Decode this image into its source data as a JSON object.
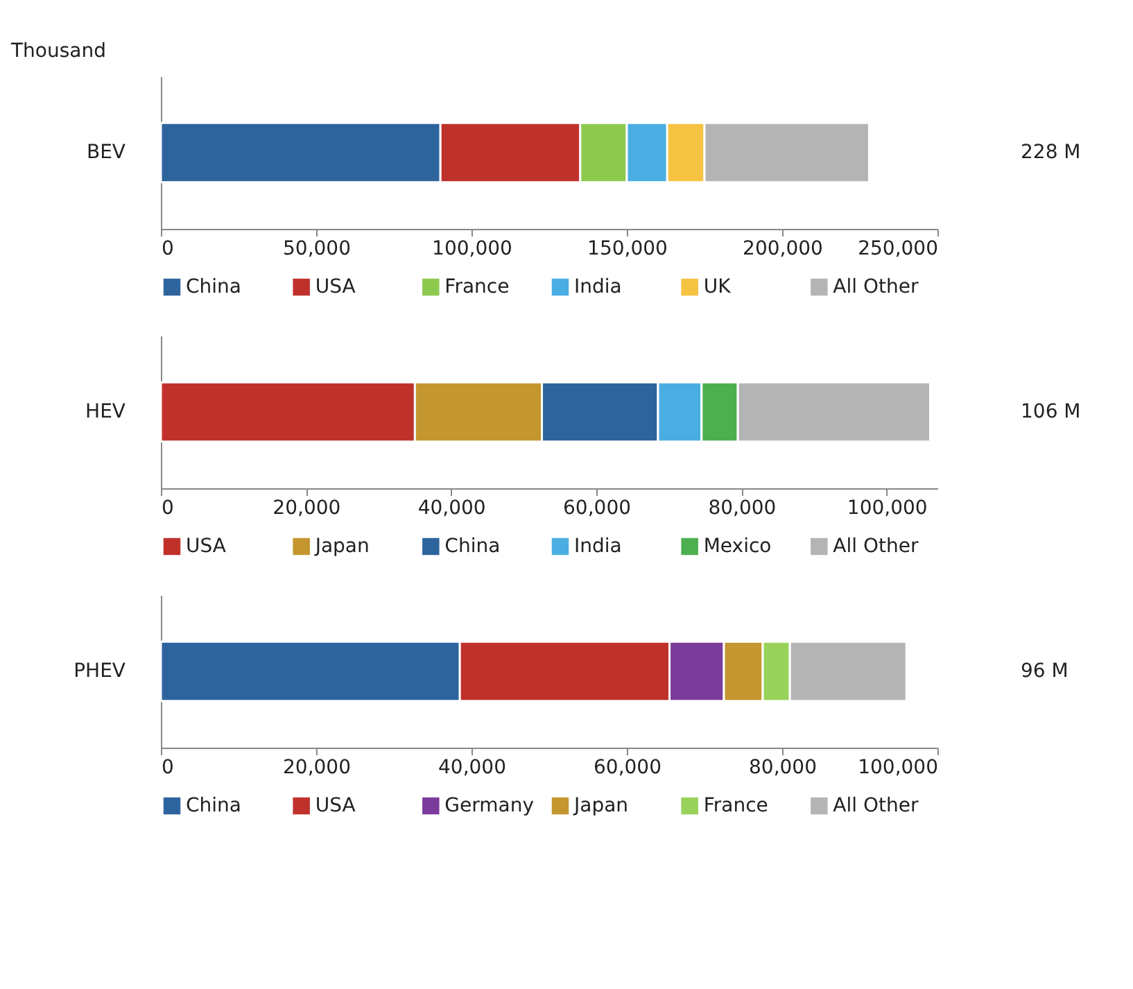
{
  "chart_data": [
    {
      "type": "bar",
      "orientation": "horizontal",
      "stacked": true,
      "ylabel": "Thousand",
      "categories": [
        "BEV"
      ],
      "xlim": [
        0,
        250000
      ],
      "xticks": [
        {
          "value": 0,
          "label": "0"
        },
        {
          "value": 50000,
          "label": "50,000"
        },
        {
          "value": 100000,
          "label": "100,000"
        },
        {
          "value": 150000,
          "label": "150,000"
        },
        {
          "value": 200000,
          "label": "200,000"
        },
        {
          "value": 250000,
          "label": "250,000"
        }
      ],
      "legend": "bottom",
      "grid": false,
      "annotations": [
        "228 M"
      ],
      "series": [
        {
          "name": "China",
          "color": "#2e649e",
          "values": [
            90000
          ]
        },
        {
          "name": "USA",
          "color": "#c0312b",
          "values": [
            45000
          ]
        },
        {
          "name": "France",
          "color": "#8dc94e",
          "values": [
            15000
          ]
        },
        {
          "name": "India",
          "color": "#4aaee3",
          "values": [
            13000
          ]
        },
        {
          "name": "UK",
          "color": "#f5c242",
          "values": [
            12000
          ]
        },
        {
          "name": "All Other",
          "color": "#b4b4b4",
          "values": [
            53000
          ]
        }
      ]
    },
    {
      "type": "bar",
      "orientation": "horizontal",
      "stacked": true,
      "categories": [
        "HEV"
      ],
      "xlim": [
        0,
        107000
      ],
      "xticks": [
        {
          "value": 0,
          "label": "0"
        },
        {
          "value": 20000,
          "label": "20,000"
        },
        {
          "value": 40000,
          "label": "40,000"
        },
        {
          "value": 60000,
          "label": "60,000"
        },
        {
          "value": 80000,
          "label": "80,000"
        },
        {
          "value": 100000,
          "label": "100,000"
        }
      ],
      "legend": "bottom",
      "grid": false,
      "annotations": [
        "106 M"
      ],
      "series": [
        {
          "name": "USA",
          "color": "#c0312b",
          "values": [
            35000
          ]
        },
        {
          "name": "Japan",
          "color": "#c4962f",
          "values": [
            17500
          ]
        },
        {
          "name": "China",
          "color": "#2e649e",
          "values": [
            16000
          ]
        },
        {
          "name": "India",
          "color": "#4aaee3",
          "values": [
            6000
          ]
        },
        {
          "name": "Mexico",
          "color": "#4caf50",
          "values": [
            5000
          ]
        },
        {
          "name": "All Other",
          "color": "#b4b4b4",
          "values": [
            26500
          ]
        }
      ]
    },
    {
      "type": "bar",
      "orientation": "horizontal",
      "stacked": true,
      "categories": [
        "PHEV"
      ],
      "xlim": [
        0,
        100000
      ],
      "xticks": [
        {
          "value": 0,
          "label": "0"
        },
        {
          "value": 20000,
          "label": "20,000"
        },
        {
          "value": 40000,
          "label": "40,000"
        },
        {
          "value": 60000,
          "label": "60,000"
        },
        {
          "value": 80000,
          "label": "80,000"
        },
        {
          "value": 100000,
          "label": "100,000"
        }
      ],
      "legend": "bottom",
      "grid": false,
      "annotations": [
        "96 M"
      ],
      "series": [
        {
          "name": "China",
          "color": "#2e649e",
          "values": [
            38500
          ]
        },
        {
          "name": "USA",
          "color": "#c0312b",
          "values": [
            27000
          ]
        },
        {
          "name": "Germany",
          "color": "#7a3b9b",
          "values": [
            7000
          ]
        },
        {
          "name": "Japan",
          "color": "#c4962f",
          "values": [
            5000
          ]
        },
        {
          "name": "France",
          "color": "#98d25a",
          "values": [
            3500
          ]
        },
        {
          "name": "All Other",
          "color": "#b4b4b4",
          "values": [
            15000
          ]
        }
      ]
    }
  ]
}
